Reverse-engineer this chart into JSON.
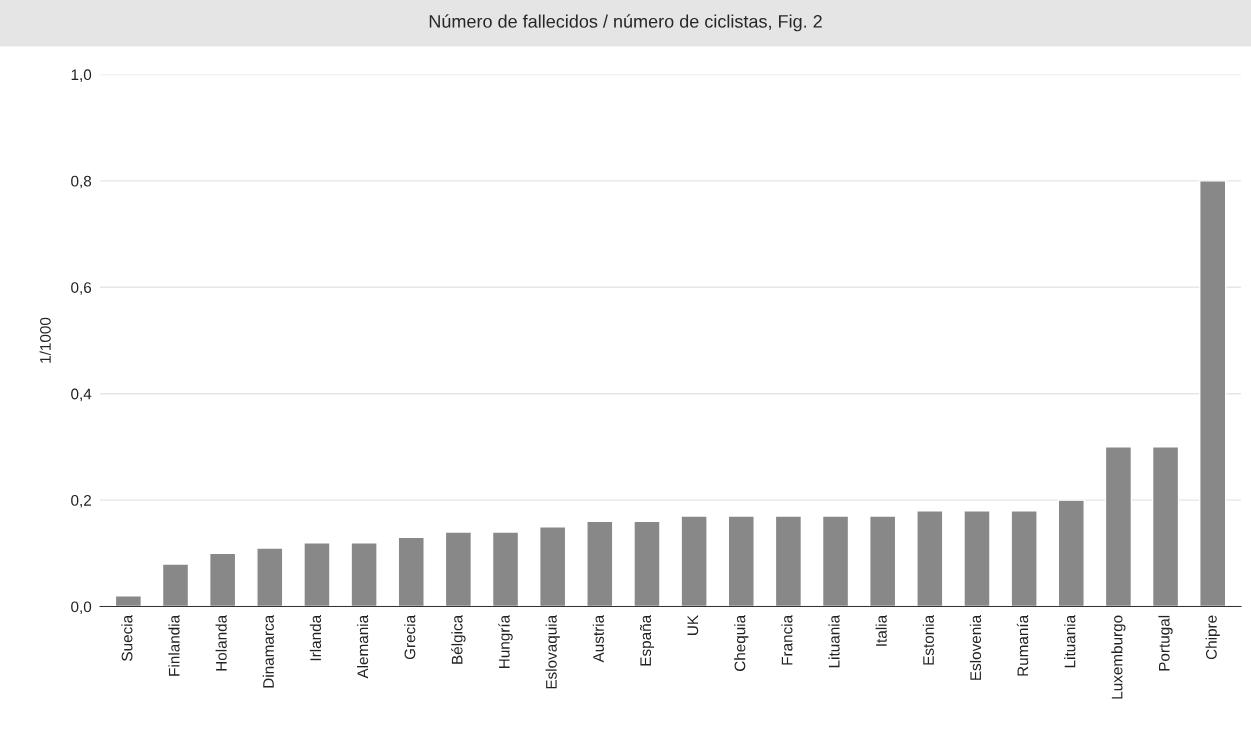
{
  "chart_data": {
    "type": "bar",
    "title": "Número de fallecidos / número de ciclistas, Fig. 2",
    "ylabel": "1/1000",
    "categories": [
      "Suecia",
      "Finlandia",
      "Holanda",
      "Dinamarca",
      "Irlanda",
      "Alemania",
      "Grecia",
      "Bélgica",
      "Hungría",
      "Eslovaquia",
      "Austria",
      "España",
      "UK",
      "Chequia",
      "Francia",
      "Lituania",
      "Italia",
      "Estonia",
      "Eslovenia",
      "Rumanía",
      "Lituania",
      "Luxemburgo",
      "Portugal",
      "Chipre"
    ],
    "values": [
      0.02,
      0.08,
      0.1,
      0.11,
      0.12,
      0.12,
      0.13,
      0.14,
      0.14,
      0.15,
      0.16,
      0.16,
      0.17,
      0.17,
      0.17,
      0.17,
      0.17,
      0.18,
      0.18,
      0.18,
      0.2,
      0.3,
      0.3,
      0.8
    ],
    "color": "#888888",
    "ylim": [
      0,
      1.0
    ],
    "yticks": [
      {
        "value": 0,
        "label": "0,0"
      },
      {
        "value": 0.2,
        "label": "0,2"
      },
      {
        "value": 0.4,
        "label": "0,4"
      },
      {
        "value": 0.6,
        "label": "0,6"
      },
      {
        "value": 0.8,
        "label": "0,8"
      },
      {
        "value": 1.0,
        "label": "1,0"
      }
    ],
    "grid": "y"
  }
}
